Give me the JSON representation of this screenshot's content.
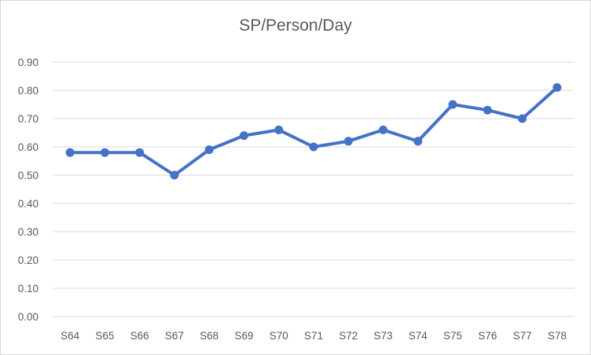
{
  "chart_data": {
    "type": "line",
    "title": "SP/Person/Day",
    "xlabel": "",
    "ylabel": "",
    "categories": [
      "S64",
      "S65",
      "S66",
      "S67",
      "S68",
      "S69",
      "S70",
      "S71",
      "S72",
      "S73",
      "S74",
      "S75",
      "S76",
      "S77",
      "S78"
    ],
    "series": [
      {
        "values": [
          0.58,
          0.58,
          0.58,
          0.5,
          0.59,
          0.64,
          0.66,
          0.6,
          0.62,
          0.66,
          0.62,
          0.75,
          0.73,
          0.7,
          0.81
        ]
      }
    ],
    "ylim": [
      0,
      0.9
    ],
    "yticks": [
      "0.00",
      "0.10",
      "0.20",
      "0.30",
      "0.40",
      "0.50",
      "0.60",
      "0.70",
      "0.80",
      "0.90"
    ],
    "ytick_values": [
      0,
      0.1,
      0.2,
      0.3,
      0.4,
      0.5,
      0.6,
      0.7,
      0.8,
      0.9
    ],
    "grid": true,
    "legend": "none",
    "line_color": "#4472C4",
    "marker": "circle"
  }
}
